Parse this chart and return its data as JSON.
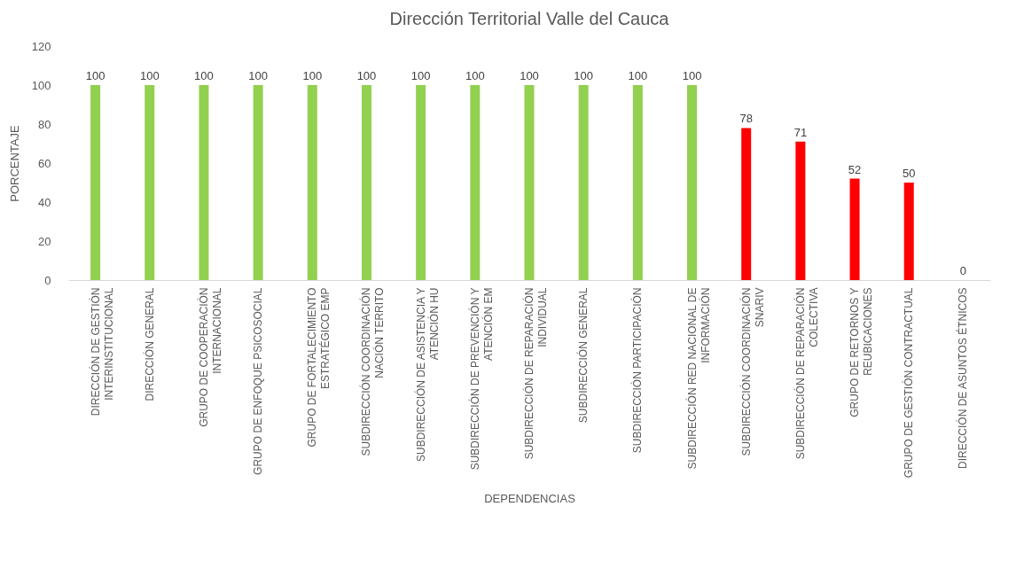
{
  "chart_data": {
    "type": "bar",
    "title": "Dirección Territorial Valle del Cauca",
    "xlabel": "DEPENDENCIAS",
    "ylabel": "PORCENTAJE",
    "categories": [
      "DIRECCIÓN DE GESTIÓN INTERINSTITUCIONAL",
      "DIRECCIÓN GENERAL",
      "GRUPO DE COOPERACIÓN INTERNACIONAL",
      "GRUPO DE ENFOQUE PSICOSOCIAL",
      "GRUPO DE FORTALECIMIENTO ESTRATÉGICO EMP",
      "SUBDIRECCIÓN COORDINACIÓN NACIÓN TERRITO",
      "SUBDIRECCIÓN DE ASISTENCIA Y ATENCIÓN HU",
      "SUBDIRECCIÓN DE PREVENCIÓN Y ATENCIÓN EM",
      "SUBDIRECCIÓN DE REPARACIÓN INDIVIDUAL",
      "SUBDIRECCIÓN GENERAL",
      "SUBDIRECCIÓN PARTICIPACIÓN",
      "SUBDIRECCIÓN RED NACIONAL DE INFORMACIÓN",
      "SUBDIRECCIÓN COORDINACIÓN SNARIV",
      "SUBDIRECCIÓN DE REPARACIÓN COLECTIVA",
      "GRUPO DE RETORNOS Y REUBICACIONES",
      "GRUPO DE GESTIÓN CONTRACTUAL",
      "DIRECCIÓN DE ASUNTOS ÉTNICOS"
    ],
    "values": [
      100,
      100,
      100,
      100,
      100,
      100,
      100,
      100,
      100,
      100,
      100,
      100,
      78,
      71,
      52,
      50,
      0
    ],
    "colors": [
      "#92d050",
      "#92d050",
      "#92d050",
      "#92d050",
      "#92d050",
      "#92d050",
      "#92d050",
      "#92d050",
      "#92d050",
      "#92d050",
      "#92d050",
      "#92d050",
      "#ff0000",
      "#ff0000",
      "#ff0000",
      "#ff0000",
      "#ff0000"
    ],
    "ylim": [
      0,
      120
    ],
    "yticks": [
      0,
      20,
      40,
      60,
      80,
      100,
      120
    ],
    "grid": false,
    "data_labels": true
  }
}
